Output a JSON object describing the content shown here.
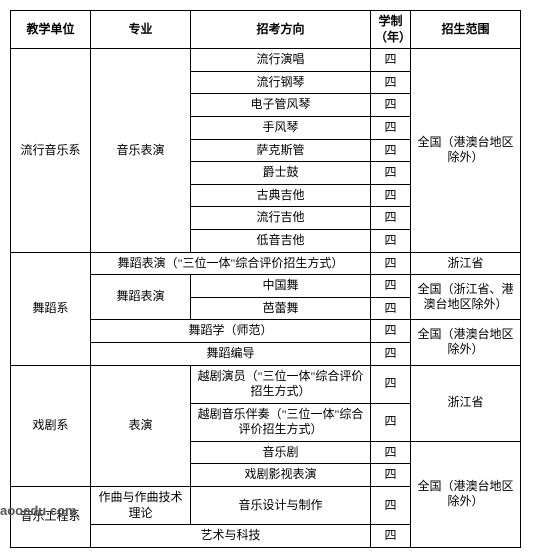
{
  "headers": {
    "unit": "教学单位",
    "major": "专业",
    "direction": "招考方向",
    "year": "学制（年）",
    "scope": "招生范围"
  },
  "scopes": {
    "national_ex_hmt": "全国（港澳台地区除外）",
    "zhejiang": "浙江省",
    "national_ex_zj_hmt": "全国（浙江省、港澳台地区除外）"
  },
  "units": {
    "pop_music": "流行音乐系",
    "dance": "舞蹈系",
    "drama": "戏剧系",
    "music_eng": "音乐工程系"
  },
  "majors": {
    "music_perf": "音乐表演",
    "dance_perf_trinity": "舞蹈表演（\"三位一体\"综合评价招生方式）",
    "dance_perf": "舞蹈表演",
    "dance_study": "舞蹈学（师范）",
    "dance_choreo": "舞蹈编导",
    "performance": "表演",
    "composition": "作曲与作曲技术理论",
    "art_tech": "艺术与科技"
  },
  "directions": {
    "pop_vocal": "流行演唱",
    "pop_piano": "流行钢琴",
    "e_organ": "电子管风琴",
    "accordion": "手风琴",
    "sax": "萨克斯管",
    "jazz_drum": "爵士鼓",
    "classical_guitar": "古典吉他",
    "pop_guitar": "流行吉他",
    "bass_guitar": "低音吉他",
    "chinese_dance": "中国舞",
    "ballet": "芭蕾舞",
    "yueju_actor": "越剧演员（\"三位一体\"综合评价招生方式）",
    "yueju_music": "越剧音乐伴奏（\"三位一体\"综合评价招生方式）",
    "musical": "音乐剧",
    "drama_film": "戏剧影视表演",
    "music_design": "音乐设计与制作"
  },
  "year": "四",
  "watermark": "aooedu.com"
}
